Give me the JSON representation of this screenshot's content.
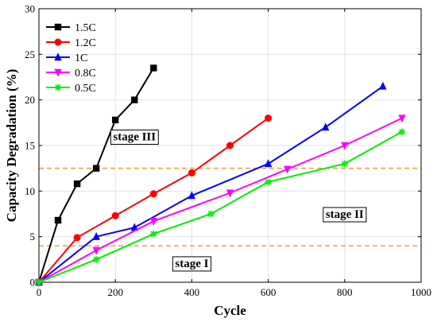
{
  "chart_data": {
    "type": "line",
    "xlabel": "Cycle",
    "ylabel": "Capacity Degradation (%)",
    "xlim": [
      0,
      1000
    ],
    "ylim": [
      0,
      30
    ],
    "xticks": [
      0,
      200,
      400,
      600,
      800,
      1000
    ],
    "yticks": [
      0,
      5,
      10,
      15,
      20,
      25,
      30
    ],
    "grid": true,
    "legend_position": "top-left",
    "series": [
      {
        "name": "1.5C",
        "color": "#000000",
        "marker": "square",
        "points": [
          [
            0,
            0
          ],
          [
            50,
            6.8
          ],
          [
            100,
            10.8
          ],
          [
            150,
            12.5
          ],
          [
            200,
            17.8
          ],
          [
            250,
            20
          ],
          [
            300,
            23.5
          ]
        ]
      },
      {
        "name": "1.2C",
        "color": "#ff0000",
        "marker": "circle",
        "points": [
          [
            0,
            0
          ],
          [
            100,
            4.9
          ],
          [
            200,
            7.3
          ],
          [
            300,
            9.7
          ],
          [
            400,
            12
          ],
          [
            500,
            15
          ],
          [
            600,
            18
          ]
        ]
      },
      {
        "name": "1C",
        "color": "#0000ff",
        "marker": "triangle",
        "points": [
          [
            0,
            0
          ],
          [
            150,
            5
          ],
          [
            250,
            6
          ],
          [
            400,
            9.5
          ],
          [
            600,
            13
          ],
          [
            750,
            17
          ],
          [
            900,
            21.5
          ]
        ]
      },
      {
        "name": "0.8C",
        "color": "#ff00ff",
        "marker": "triangle-down",
        "points": [
          [
            0,
            0
          ],
          [
            150,
            3.5
          ],
          [
            300,
            6.7
          ],
          [
            500,
            9.8
          ],
          [
            650,
            12.4
          ],
          [
            800,
            15
          ],
          [
            950,
            18
          ]
        ]
      },
      {
        "name": "0.5C",
        "color": "#00ee00",
        "marker": "asterisk",
        "points": [
          [
            0,
            0
          ],
          [
            150,
            2.5
          ],
          [
            300,
            5.3
          ],
          [
            450,
            7.5
          ],
          [
            600,
            11
          ],
          [
            800,
            13
          ],
          [
            950,
            16.5
          ]
        ]
      }
    ],
    "reference_lines": [
      {
        "y": 12.5,
        "color": "#ff9933",
        "style": "dashed"
      },
      {
        "y": 4,
        "color": "#ff9933",
        "style": "dashed"
      }
    ],
    "annotations": [
      {
        "text": "stage III",
        "x": 250,
        "y": 16
      },
      {
        "text": "stage II",
        "x": 800,
        "y": 7.5
      },
      {
        "text": "stage I",
        "x": 400,
        "y": 2.1
      }
    ]
  }
}
